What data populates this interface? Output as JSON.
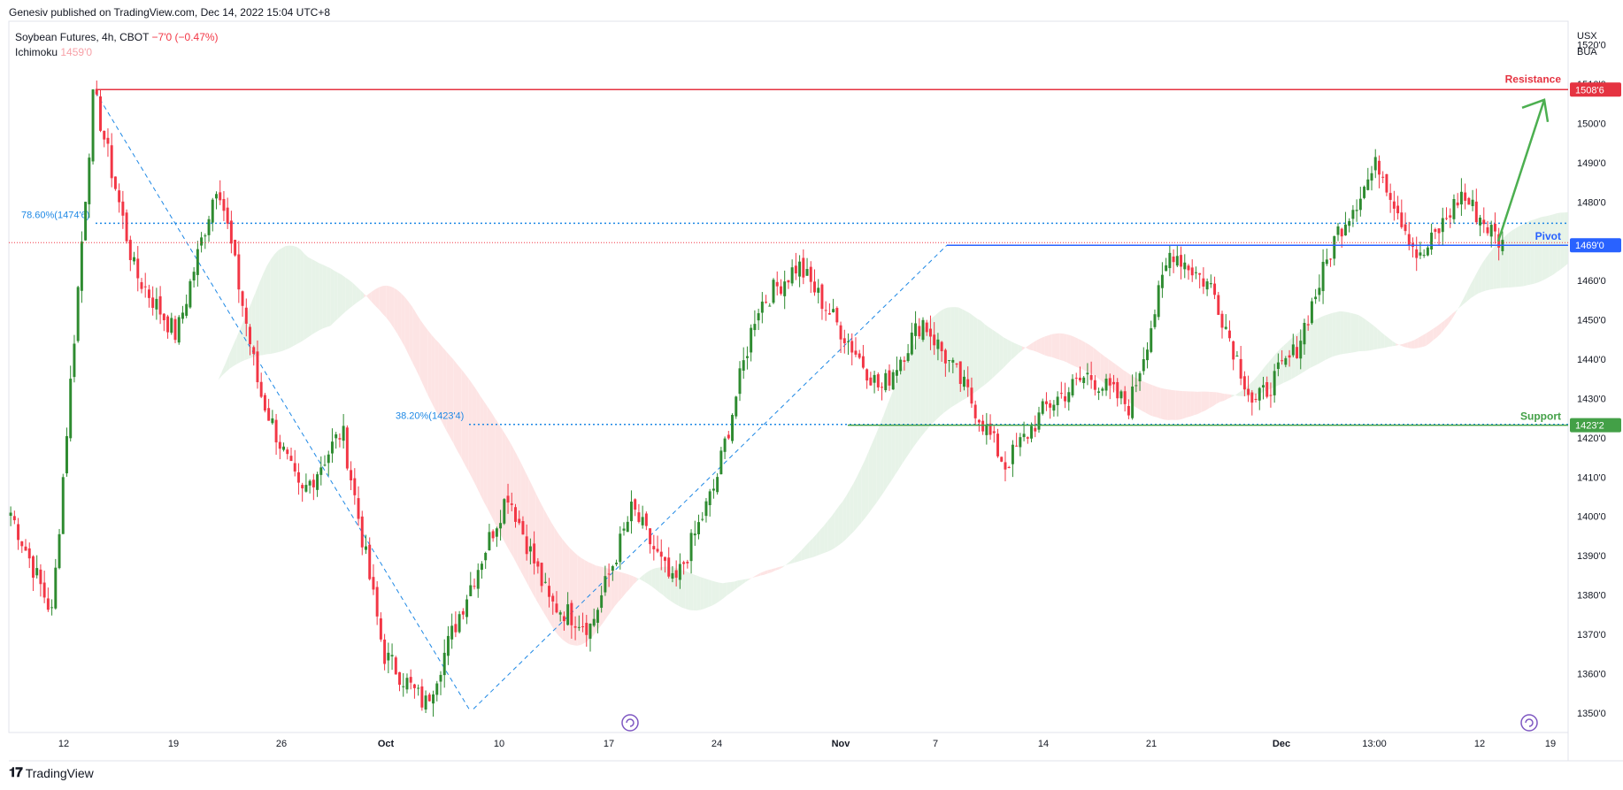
{
  "publisher": "Genesiv published on TradingView.com, Dec 14, 2022 15:04 UTC+8",
  "legend": {
    "symbol": "Soybean Futures, 4h, CBOT",
    "change": "−7'0 (−0.47%)",
    "indicator": "Ichimoku",
    "indicator_value": "1459'0"
  },
  "axis_currency": [
    "USX",
    "BUA"
  ],
  "brand": "TradingView",
  "colors": {
    "up": "#089981",
    "up_candle": "#2e8b30",
    "down": "#f23645",
    "resistance": "#e53341",
    "pivot": "#2962ff",
    "support": "#43a047",
    "fib": "#1e88e5",
    "cloud_bull": "#e7f3e8",
    "cloud_bear": "#fde4e4",
    "arrow": "#4caf50"
  },
  "chart_data": {
    "type": "candlestick",
    "title": "Soybean Futures, 4h, CBOT",
    "ylim": [
      13450,
      15260
    ],
    "y_ticks": [
      "1350'0",
      "1360'0",
      "1370'0",
      "1380'0",
      "1390'0",
      "1400'0",
      "1410'0",
      "1420'0",
      "1430'0",
      "1440'0",
      "1450'0",
      "1460'0",
      "1470'0",
      "1480'0",
      "1490'0",
      "1500'0",
      "1510'0",
      "1520'0"
    ],
    "x_ticks": [
      "12",
      "19",
      "26",
      "Oct",
      "10",
      "17",
      "24",
      "Nov",
      "7",
      "14",
      "21",
      "Dec",
      "13:00",
      "12",
      "19"
    ],
    "price_series_keypoints": [
      {
        "date": "Sep 9",
        "price": 14010
      },
      {
        "date": "Sep 12",
        "price": 13750
      },
      {
        "date": "Sep 13",
        "price": 15080
      },
      {
        "date": "Sep 15",
        "price": 14620
      },
      {
        "date": "Sep 19",
        "price": 14460
      },
      {
        "date": "Sep 22",
        "price": 14860
      },
      {
        "date": "Sep 26",
        "price": 14320
      },
      {
        "date": "Sep 29",
        "price": 14050
      },
      {
        "date": "Sep 30",
        "price": 14220
      },
      {
        "date": "Oct 3",
        "price": 13650
      },
      {
        "date": "Oct 7",
        "price": 13520
      },
      {
        "date": "Oct 11",
        "price": 13800
      },
      {
        "date": "Oct 14",
        "price": 14060
      },
      {
        "date": "Oct 17",
        "price": 13780
      },
      {
        "date": "Oct 20",
        "price": 13720
      },
      {
        "date": "Oct 24",
        "price": 14020
      },
      {
        "date": "Oct 27",
        "price": 13820
      },
      {
        "date": "Oct 31",
        "price": 14080
      },
      {
        "date": "Nov 2",
        "price": 14530
      },
      {
        "date": "Nov 7",
        "price": 14640
      },
      {
        "date": "Nov 9",
        "price": 14480
      },
      {
        "date": "Nov 11",
        "price": 14320
      },
      {
        "date": "Nov 14",
        "price": 14500
      },
      {
        "date": "Nov 17",
        "price": 14330
      },
      {
        "date": "Nov 18",
        "price": 14130
      },
      {
        "date": "Nov 22",
        "price": 14280
      },
      {
        "date": "Nov 25",
        "price": 14360
      },
      {
        "date": "Nov 28",
        "price": 14280
      },
      {
        "date": "Nov 30",
        "price": 14680
      },
      {
        "date": "Dec 1",
        "price": 14580
      },
      {
        "date": "Dec 2",
        "price": 14280
      },
      {
        "date": "Dec 6",
        "price": 14420
      },
      {
        "date": "Dec 8",
        "price": 14720
      },
      {
        "date": "Dec 9",
        "price": 14900
      },
      {
        "date": "Dec 12",
        "price": 14650
      },
      {
        "date": "Dec 13",
        "price": 14820
      },
      {
        "date": "Dec 14",
        "price": 14690
      }
    ],
    "levels": [
      {
        "name": "Resistance",
        "price": 15086,
        "label": "1508'6"
      },
      {
        "name": "Pivot",
        "price": 14690,
        "label": "1469'0"
      },
      {
        "name": "Support",
        "price": 14232,
        "label": "1423'2"
      }
    ],
    "fib_levels": [
      {
        "label": "78.60%(1474'6)",
        "price": 14746
      },
      {
        "label": "38.20%(1423'4)",
        "price": 14234
      }
    ],
    "annotations": [
      "Resistance",
      "Pivot",
      "Support"
    ]
  }
}
